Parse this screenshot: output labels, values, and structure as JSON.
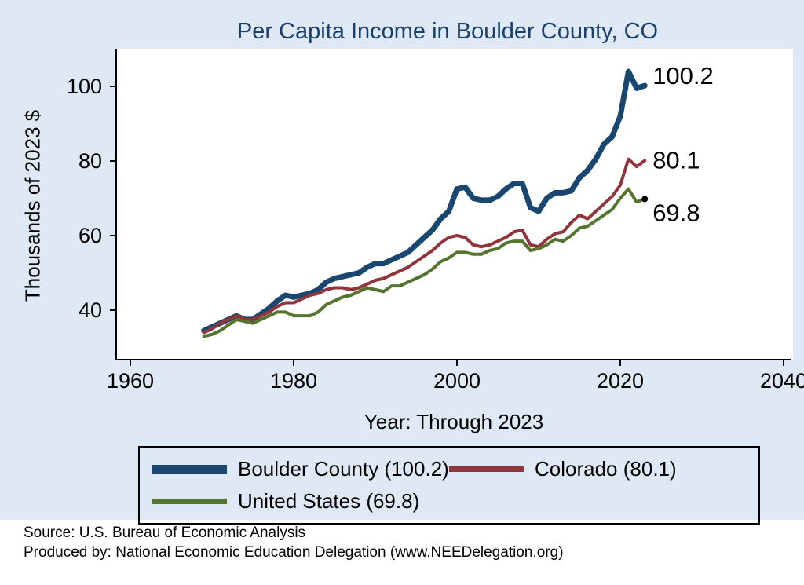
{
  "header": {
    "title": "Per Capita Income in Boulder County, CO"
  },
  "notes": {
    "source": "Source: U.S. Bureau of Economic Analysis",
    "produced_by": "Produced by: National Economic Education Delegation (www.NEEDelegation.org)"
  },
  "colors": {
    "background": "#dfe9f5",
    "plot_background": "#ffffff",
    "title": "#1a3f6f",
    "axis": "#000000",
    "boulder_navy": "#1a476f",
    "colorado_maroon": "#90353b",
    "us_green": "#55752f"
  },
  "chart_data": {
    "type": "line",
    "title": "Per Capita Income in Boulder County, CO",
    "xlabel": "Year: Through 2023",
    "ylabel": "Thousands of 2023 $",
    "xticks": [
      1960,
      1980,
      2000,
      2020,
      2040
    ],
    "yticks": [
      40,
      60,
      80,
      100
    ],
    "xlim": [
      1958,
      2042
    ],
    "ylim": [
      27,
      109
    ],
    "grid": false,
    "legend_position": "bottom-box",
    "x": [
      1969,
      1970,
      1971,
      1972,
      1973,
      1974,
      1975,
      1976,
      1977,
      1978,
      1979,
      1980,
      1981,
      1982,
      1983,
      1984,
      1985,
      1986,
      1987,
      1988,
      1989,
      1990,
      1991,
      1992,
      1993,
      1994,
      1995,
      1996,
      1997,
      1998,
      1999,
      2000,
      2001,
      2002,
      2003,
      2004,
      2005,
      2006,
      2007,
      2008,
      2009,
      2010,
      2011,
      2012,
      2013,
      2014,
      2015,
      2016,
      2017,
      2018,
      2019,
      2020,
      2021,
      2022,
      2023
    ],
    "series": [
      {
        "name": "Boulder County",
        "legend_label": "Boulder County (100.2)",
        "color": "#1a476f",
        "line_width": 7,
        "end_label": "100.2",
        "label_dy": -12,
        "end_dot": false,
        "values": [
          34.5,
          35.5,
          36.5,
          37.5,
          38.5,
          37.5,
          37.5,
          39,
          40.5,
          42.5,
          44,
          43.5,
          44,
          44.5,
          45.5,
          47.5,
          48.5,
          49,
          49.5,
          50,
          51.5,
          52.5,
          52.5,
          53.5,
          54.5,
          55.5,
          57.5,
          59.5,
          61.5,
          64.5,
          66.5,
          72.5,
          73,
          70,
          69.5,
          69.5,
          70.5,
          72.5,
          74,
          74,
          67.5,
          66.5,
          70,
          71.5,
          71.5,
          72,
          75.5,
          77.5,
          80.5,
          84.5,
          86.5,
          92,
          104,
          99.5,
          100.2
        ]
      },
      {
        "name": "Colorado",
        "legend_label": "Colorado (80.1)",
        "color": "#90353b",
        "line_width": 4,
        "end_label": "80.1",
        "label_dy": 0,
        "end_dot": false,
        "values": [
          34,
          35,
          36.5,
          37.5,
          38.5,
          37.5,
          37.5,
          38.5,
          39.5,
          41,
          42,
          42,
          43,
          44,
          44.5,
          45.5,
          46,
          46,
          45.5,
          46,
          47,
          48,
          48.5,
          49.5,
          50.5,
          51.5,
          53,
          54.5,
          56,
          58,
          59.5,
          60,
          59.5,
          57.5,
          57,
          57.5,
          58.5,
          59.5,
          61,
          61.5,
          57.5,
          57,
          59,
          60.5,
          61,
          63.5,
          65.5,
          64.5,
          66.5,
          68.5,
          70.5,
          73.5,
          80.5,
          78.5,
          80.1
        ]
      },
      {
        "name": "United States",
        "legend_label": "United States (69.8)",
        "color": "#55752f",
        "line_width": 4,
        "end_label": "69.8",
        "label_dy": 18,
        "end_dot": true,
        "values": [
          33,
          33.5,
          34.5,
          36,
          37.5,
          37,
          36.5,
          37.5,
          38.5,
          39.5,
          39.5,
          38.5,
          38.5,
          38.5,
          39.5,
          41.5,
          42.5,
          43.5,
          44,
          45,
          46,
          45.5,
          45,
          46.5,
          46.5,
          47.5,
          48.5,
          49.5,
          51,
          53,
          54,
          55.5,
          55.5,
          55,
          55,
          56,
          56.5,
          58,
          58.5,
          58.5,
          56,
          56.5,
          57.5,
          59,
          58.5,
          60,
          62,
          62.5,
          64,
          65.5,
          67,
          70,
          72.5,
          69,
          69.8
        ]
      }
    ]
  }
}
